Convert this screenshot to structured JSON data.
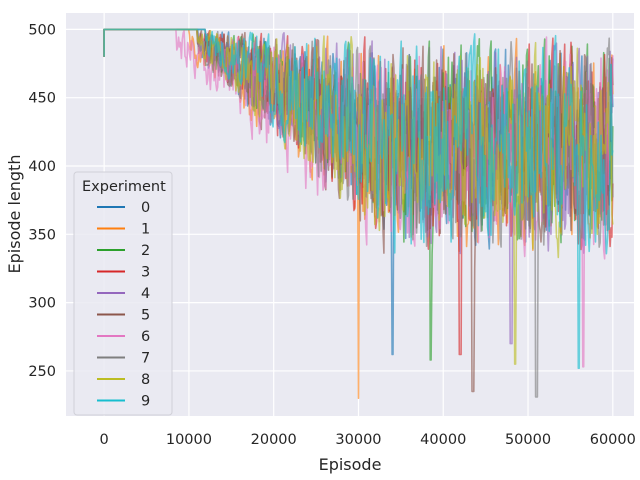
{
  "chart_data": {
    "type": "line",
    "xlabel": "Episode",
    "ylabel": "Episode length",
    "xlim": [
      -4500,
      62500
    ],
    "ylim": [
      217,
      512
    ],
    "x_ticks": [
      0,
      10000,
      20000,
      30000,
      40000,
      50000,
      60000
    ],
    "x_tick_labels": [
      "0",
      "10000",
      "20000",
      "30000",
      "40000",
      "50000",
      "60000"
    ],
    "y_ticks": [
      250,
      300,
      350,
      400,
      450,
      500
    ],
    "y_tick_labels": [
      "250",
      "300",
      "350",
      "400",
      "450",
      "500"
    ],
    "grid": true,
    "background": "#eaeaf2",
    "legend": {
      "title": "Experiment",
      "position": "center-left"
    },
    "series": [
      {
        "name": "0",
        "color": "#1f77b4",
        "start": 0,
        "end": 60000,
        "initial": 480,
        "plateau_until": 11000,
        "minimum": 262,
        "x_at_minimum": 34000
      },
      {
        "name": "1",
        "color": "#ff7f0e",
        "start": 0,
        "end": 60000,
        "initial": 480,
        "plateau_until": 10000,
        "minimum": 230,
        "x_at_minimum": 30000
      },
      {
        "name": "2",
        "color": "#2ca02c",
        "start": 0,
        "end": 60000,
        "initial": 480,
        "plateau_until": 12000,
        "minimum": 258,
        "x_at_minimum": 38500
      },
      {
        "name": "3",
        "color": "#d62728",
        "start": 0,
        "end": 60000,
        "initial": 480,
        "plateau_until": 11000,
        "minimum": 262,
        "x_at_minimum": 42000
      },
      {
        "name": "4",
        "color": "#9467bd",
        "start": 0,
        "end": 60000,
        "initial": 480,
        "plateau_until": 12000,
        "minimum": 270,
        "x_at_minimum": 48000
      },
      {
        "name": "5",
        "color": "#8c564b",
        "start": 0,
        "end": 60000,
        "initial": 480,
        "plateau_until": 11000,
        "minimum": 235,
        "x_at_minimum": 43500
      },
      {
        "name": "6",
        "color": "#e377c2",
        "start": 0,
        "end": 60000,
        "initial": 480,
        "plateau_until": 8500,
        "minimum": 253,
        "x_at_minimum": 56500
      },
      {
        "name": "7",
        "color": "#7f7f7f",
        "start": 0,
        "end": 60000,
        "initial": 480,
        "plateau_until": 11000,
        "minimum": 231,
        "x_at_minimum": 51000
      },
      {
        "name": "8",
        "color": "#bcbd22",
        "start": 0,
        "end": 60000,
        "initial": 480,
        "plateau_until": 11000,
        "minimum": 255,
        "x_at_minimum": 48500
      },
      {
        "name": "9",
        "color": "#17becf",
        "start": 0,
        "end": 60000,
        "initial": 480,
        "plateau_until": 12000,
        "minimum": 252,
        "x_at_minimum": 56000
      }
    ],
    "max_value": 500
  }
}
